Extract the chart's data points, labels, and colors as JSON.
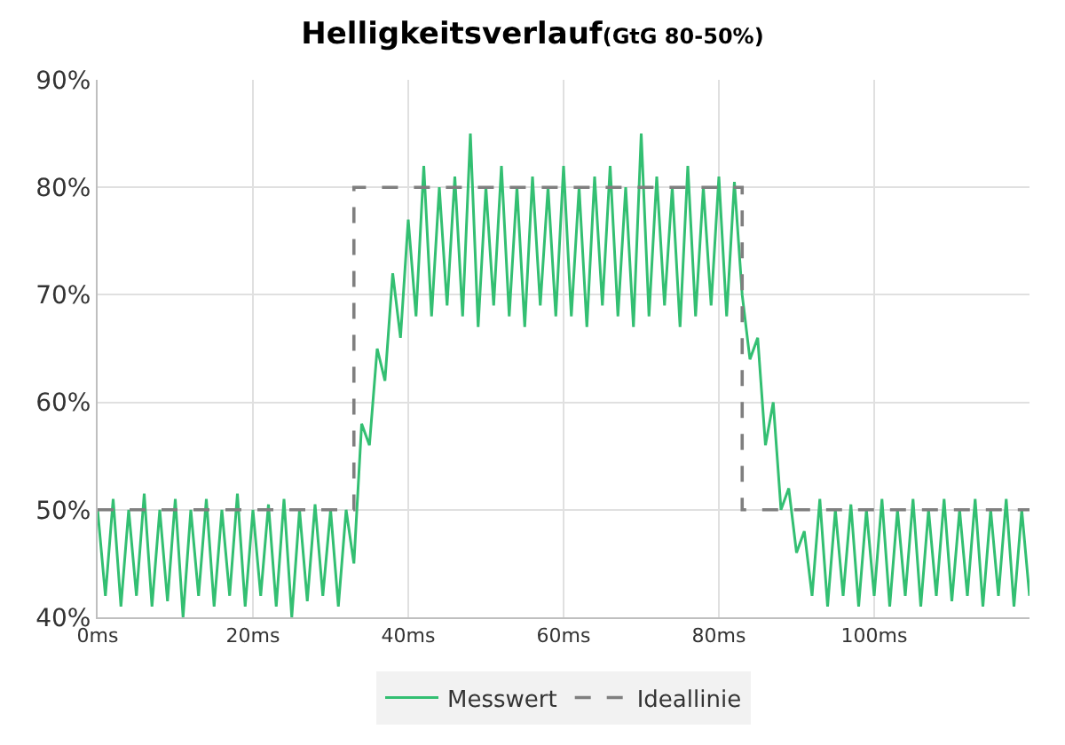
{
  "chart_data": {
    "type": "line",
    "title": "Helligkeitsverlauf",
    "subtitle": "(GtG 80-50%)",
    "xlim": [
      0,
      120
    ],
    "xticks": [
      {
        "value": 0,
        "label": "0ms"
      },
      {
        "value": 20,
        "label": "20ms"
      },
      {
        "value": 40,
        "label": "40ms"
      },
      {
        "value": 60,
        "label": "60ms"
      },
      {
        "value": 80,
        "label": "80ms"
      },
      {
        "value": 100,
        "label": "100ms"
      }
    ],
    "ylim": [
      40,
      90
    ],
    "yticks": [
      {
        "value": 40,
        "label": "40%"
      },
      {
        "value": 50,
        "label": "50%"
      },
      {
        "value": 60,
        "label": "60%"
      },
      {
        "value": 70,
        "label": "70%"
      },
      {
        "value": 80,
        "label": "80%"
      },
      {
        "value": 90,
        "label": "90%"
      }
    ],
    "grid": true,
    "legend": "bottom",
    "series": [
      {
        "name": "Messwert",
        "color": "#33bf72",
        "line_style": "solid",
        "x": [
          0,
          1,
          2,
          3,
          4,
          5,
          6,
          7,
          8,
          9,
          10,
          11,
          12,
          13,
          14,
          15,
          16,
          17,
          18,
          19,
          20,
          21,
          22,
          23,
          24,
          25,
          26,
          27,
          28,
          29,
          30,
          31,
          32,
          33,
          34,
          35,
          36,
          37,
          38,
          39,
          40,
          41,
          42,
          43,
          44,
          45,
          46,
          47,
          48,
          49,
          50,
          51,
          52,
          53,
          54,
          55,
          56,
          57,
          58,
          59,
          60,
          61,
          62,
          63,
          64,
          65,
          66,
          67,
          68,
          69,
          70,
          71,
          72,
          73,
          74,
          75,
          76,
          77,
          78,
          79,
          80,
          81,
          82,
          83,
          84,
          85,
          86,
          87,
          88,
          89,
          90,
          91,
          92,
          93,
          94,
          95,
          96,
          97,
          98,
          99,
          100,
          101,
          102,
          103,
          104,
          105,
          106,
          107,
          108,
          109,
          110,
          111,
          112,
          113,
          114,
          115,
          116,
          117,
          118,
          119,
          120
        ],
        "values": [
          50,
          42,
          51,
          41,
          50,
          42,
          51.5,
          41,
          50,
          41.5,
          51,
          40,
          50,
          42,
          51,
          41,
          50,
          42,
          51.5,
          41,
          50,
          42,
          50.5,
          41,
          51,
          40,
          50,
          41.5,
          50.5,
          42,
          50,
          41,
          50,
          45,
          58,
          56,
          65,
          62,
          72,
          66,
          77,
          68,
          82,
          68,
          80,
          69,
          81,
          68,
          85,
          67,
          80,
          69,
          82,
          68,
          80,
          67,
          81,
          69,
          80,
          68,
          82,
          68,
          80,
          67,
          81,
          69,
          82,
          68,
          80,
          67,
          85,
          68,
          81,
          69,
          80,
          67,
          82,
          68,
          80,
          69,
          81,
          68,
          80.5,
          70,
          64,
          66,
          56,
          60,
          50,
          52,
          46,
          48,
          42,
          51,
          41,
          50,
          42,
          50.5,
          41,
          50,
          42,
          51,
          41,
          50,
          42,
          51,
          41,
          50,
          42,
          51,
          41.5,
          50,
          42,
          51,
          41,
          50,
          42,
          51,
          41,
          50,
          42
        ]
      },
      {
        "name": "Ideallinie",
        "color": "#7f7f7f",
        "line_style": "dashed",
        "x": [
          0,
          33,
          33,
          83,
          83,
          120
        ],
        "values": [
          50,
          50,
          80,
          80,
          50,
          50
        ]
      }
    ]
  }
}
